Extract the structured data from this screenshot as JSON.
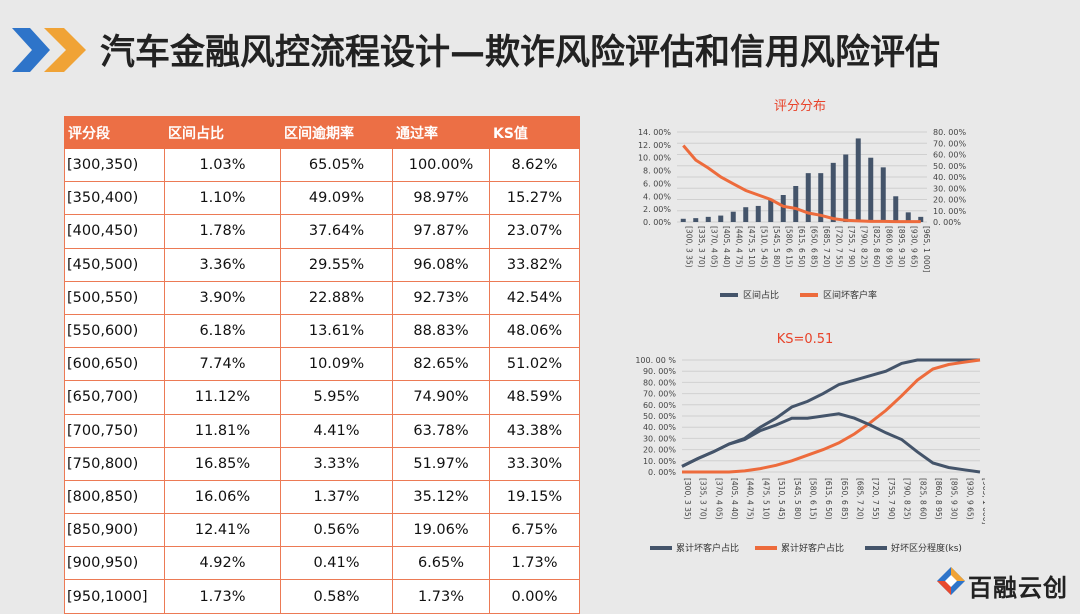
{
  "title": "汽车金融风控流程设计—欺诈风险评估和信用风险评估",
  "table": {
    "headers": [
      "评分段",
      "区间占比",
      "区间逾期率",
      "通过率",
      "KS值"
    ],
    "rows": [
      [
        "[300,350)",
        "1.03%",
        "65.05%",
        "100.00%",
        "8.62%"
      ],
      [
        "[350,400)",
        "1.10%",
        "49.09%",
        "98.97%",
        "15.27%"
      ],
      [
        "[400,450)",
        "1.78%",
        "37.64%",
        "97.87%",
        "23.07%"
      ],
      [
        "[450,500)",
        "3.36%",
        "29.55%",
        "96.08%",
        "33.82%"
      ],
      [
        "[500,550)",
        "3.90%",
        "22.88%",
        "92.73%",
        "42.54%"
      ],
      [
        "[550,600)",
        "6.18%",
        "13.61%",
        "88.83%",
        "48.06%"
      ],
      [
        "[600,650)",
        "7.74%",
        "10.09%",
        "82.65%",
        "51.02%"
      ],
      [
        "[650,700)",
        "11.12%",
        "5.95%",
        "74.90%",
        "48.59%"
      ],
      [
        "[700,750)",
        "11.81%",
        "4.41%",
        "63.78%",
        "43.38%"
      ],
      [
        "[750,800)",
        "16.85%",
        "3.33%",
        "51.97%",
        "33.30%"
      ],
      [
        "[800,850)",
        "16.06%",
        "1.37%",
        "35.12%",
        "19.15%"
      ],
      [
        "[850,900)",
        "12.41%",
        "0.56%",
        "19.06%",
        "6.75%"
      ],
      [
        "[900,950)",
        "4.92%",
        "0.41%",
        "6.65%",
        "1.73%"
      ],
      [
        "[950,1000]",
        "1.73%",
        "0.58%",
        "1.73%",
        "0.00%"
      ]
    ]
  },
  "chart_data": [
    {
      "type": "bar",
      "title": "评分分布",
      "categories": [
        "[300, 3 35)",
        "[335, 3 70)",
        "[370, 4 05)",
        "[405, 4 40)",
        "[440, 4 75)",
        "[475, 5 10)",
        "[510, 5 45)",
        "[545, 5 80)",
        "[580, 6 15)",
        "[615, 6 50)",
        "[650, 6 85)",
        "[685, 7 20)",
        "[720, 7 55)",
        "[755, 7 90)",
        "[790, 8 25)",
        "[825, 8 60)",
        "[860, 8 95)",
        "[895, 9 30)",
        "[930, 9 65)",
        "[965, 1 000]"
      ],
      "left_ticks": [
        "14. 00%",
        "12. 00%",
        "10. 00%",
        "8. 00%",
        "6. 00%",
        "4. 00%",
        "2. 00%",
        "0. 00%"
      ],
      "right_ticks": [
        "80. 00%",
        "70. 00%",
        "60. 00%",
        "50. 00%",
        "40. 00%",
        "30. 00%",
        "20. 00%",
        "10. 00%",
        "0. 00%"
      ],
      "ylim_left": [
        0,
        14
      ],
      "ylim_right": [
        0,
        80
      ],
      "series": [
        {
          "name": "区间占比",
          "axis": "left",
          "kind": "bar",
          "color": "#44546a",
          "values": [
            0.5,
            0.6,
            0.8,
            1.0,
            1.6,
            2.3,
            2.5,
            3.6,
            4.2,
            5.6,
            7.6,
            7.6,
            9.2,
            10.5,
            13.0,
            10.0,
            8.5,
            4.0,
            1.5,
            0.8
          ]
        },
        {
          "name": "区间坏客户率",
          "axis": "right",
          "kind": "line",
          "color": "#ed6b3c",
          "values": [
            68,
            55,
            48,
            40,
            34,
            28,
            24,
            20,
            14,
            12,
            8,
            6,
            3,
            1.5,
            1,
            0.5,
            0.5,
            0.4,
            0.4,
            0.4
          ]
        }
      ]
    },
    {
      "type": "line",
      "title": "KS=0.51",
      "categories": [
        "[300, 3 35)",
        "[335, 3 70)",
        "[370, 4 05)",
        "[405, 4 40)",
        "[440, 4 75)",
        "[475, 5 10)",
        "[510, 5 45)",
        "[545, 5 80)",
        "[580, 6 15)",
        "[615, 6 50)",
        "[650, 6 85)",
        "[685, 7 20)",
        "[720, 7 55)",
        "[755, 7 90)",
        "[790, 8 25)",
        "[825, 8 60)",
        "[860, 8 95)",
        "[895, 9 30)",
        "[930, 9 65)",
        "[965, 1 000]"
      ],
      "y_ticks": [
        "100. 00 %",
        "90. 00%",
        "80. 00%",
        "70. 00%",
        "60. 00%",
        "50. 00%",
        "40. 00%",
        "30. 00%",
        "20. 00%",
        "10. 00%",
        "0. 00%"
      ],
      "ylim": [
        0,
        100
      ],
      "series": [
        {
          "name": "累计坏客户占比",
          "color": "#44546a",
          "values": [
            5,
            12,
            18,
            25,
            30,
            40,
            48,
            58,
            63,
            70,
            78,
            82,
            86,
            90,
            97,
            100,
            100,
            100,
            100,
            100
          ]
        },
        {
          "name": "累计好客户占比",
          "color": "#ed6b3c",
          "values": [
            0,
            0,
            0,
            0,
            1,
            3,
            6,
            10,
            15,
            20,
            26,
            34,
            44,
            55,
            68,
            82,
            92,
            96,
            98,
            100
          ]
        },
        {
          "name": "好坏区分程度(ks)",
          "color": "#44546a",
          "values": [
            5,
            12,
            18,
            25,
            29,
            37,
            42,
            48,
            48,
            50,
            52,
            48,
            42,
            35,
            29,
            18,
            8,
            4,
            2,
            0
          ]
        }
      ]
    }
  ],
  "logo": {
    "text": "百融云创"
  }
}
